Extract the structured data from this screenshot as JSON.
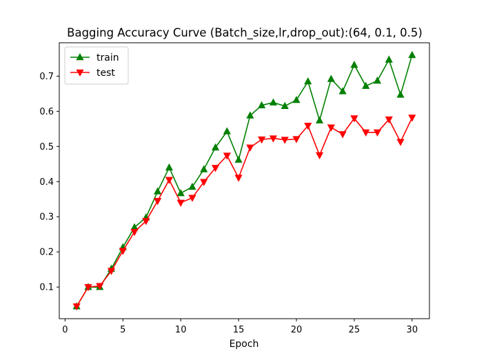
{
  "chart_data": {
    "type": "line",
    "title": "Bagging Accuracy Curve (Batch_size,lr,drop_out):(64, 0.1, 0.5)",
    "xlabel": "Epoch",
    "ylabel": "",
    "xlim": [
      -0.5,
      31.5
    ],
    "ylim": [
      0.01,
      0.795
    ],
    "xticks": [
      0,
      5,
      10,
      15,
      20,
      25,
      30
    ],
    "yticks": [
      0.1,
      0.2,
      0.3,
      0.4,
      0.5,
      0.6,
      0.7
    ],
    "grid": false,
    "legend_position": "top-left",
    "x": [
      1,
      2,
      3,
      4,
      5,
      6,
      7,
      8,
      9,
      10,
      11,
      12,
      13,
      14,
      15,
      16,
      17,
      18,
      19,
      20,
      21,
      22,
      23,
      24,
      25,
      26,
      27,
      28,
      29,
      30
    ],
    "series": [
      {
        "name": "train",
        "color": "#008000",
        "marker": "triangle-up",
        "values": [
          0.045,
          0.1,
          0.1,
          0.152,
          0.213,
          0.27,
          0.298,
          0.372,
          0.44,
          0.367,
          0.385,
          0.435,
          0.497,
          0.543,
          0.462,
          0.588,
          0.617,
          0.625,
          0.615,
          0.632,
          0.685,
          0.574,
          0.692,
          0.657,
          0.732,
          0.672,
          0.687,
          0.747,
          0.647,
          0.76
        ]
      },
      {
        "name": "test",
        "color": "#ff0000",
        "marker": "triangle-down",
        "values": [
          0.045,
          0.1,
          0.103,
          0.146,
          0.203,
          0.257,
          0.288,
          0.345,
          0.405,
          0.34,
          0.354,
          0.399,
          0.439,
          0.474,
          0.411,
          0.497,
          0.52,
          0.523,
          0.519,
          0.521,
          0.559,
          0.475,
          0.554,
          0.535,
          0.58,
          0.54,
          0.54,
          0.577,
          0.513,
          0.582
        ]
      }
    ]
  }
}
